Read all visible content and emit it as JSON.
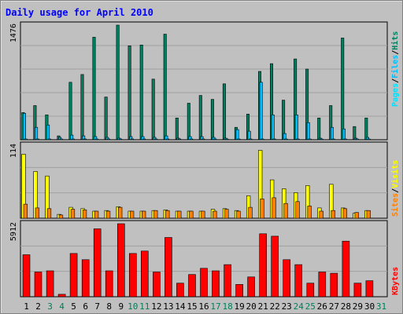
{
  "chart_data": [
    {
      "title": "Daily usage for April 2010",
      "type": "bar",
      "categories": [
        "1",
        "2",
        "3",
        "4",
        "5",
        "6",
        "7",
        "8",
        "9",
        "10",
        "11",
        "12",
        "13",
        "14",
        "15",
        "16",
        "17",
        "18",
        "19",
        "20",
        "21",
        "22",
        "23",
        "24",
        "25",
        "26",
        "27",
        "28",
        "29",
        "30",
        "31"
      ],
      "weekend_days": [
        "3",
        "4",
        "10",
        "11",
        "17",
        "18",
        "24",
        "25",
        "31"
      ],
      "panels": [
        {
          "id": "hits-files-pages",
          "ymax_label": "1476",
          "ymax": 1476,
          "axis_label_parts": [
            "Pages",
            "/",
            "Files",
            "/",
            "Hits"
          ],
          "series": [
            {
              "name": "Hits",
              "color": "#008060",
              "values": [
                350,
                440,
                320,
                50,
                740,
                840,
                1320,
                550,
                1476,
                1210,
                1220,
                780,
                1360,
                280,
                470,
                570,
                520,
                720,
                160,
                330,
                880,
                980,
                510,
                1040,
                910,
                280,
                440,
                1310,
                170,
                280,
                0
              ]
            },
            {
              "name": "Files",
              "color": "#00c0ff",
              "values": [
                340,
                160,
                190,
                30,
                60,
                50,
                40,
                30,
                20,
                40,
                40,
                30,
                50,
                20,
                40,
                40,
                30,
                20,
                130,
                110,
                740,
                320,
                80,
                320,
                220,
                20,
                160,
                140,
                20,
                30,
                0
              ]
            },
            {
              "name": "Pages",
              "color": "#00e0ff",
              "values": [
                5,
                5,
                5,
                3,
                5,
                5,
                5,
                3,
                3,
                5,
                5,
                5,
                5,
                3,
                5,
                5,
                5,
                5,
                5,
                5,
                5,
                5,
                5,
                5,
                5,
                5,
                5,
                5,
                3,
                3,
                0
              ]
            }
          ]
        },
        {
          "id": "visits-sites",
          "ymax_label": "114",
          "ymax": 114,
          "axis_label_parts": [
            "Sites",
            "/",
            "Visits"
          ],
          "series": [
            {
              "name": "Visits",
              "color": "#ffff00",
              "values": [
                100,
                73,
                66,
                6,
                17,
                15,
                11,
                12,
                18,
                11,
                11,
                12,
                13,
                11,
                11,
                11,
                14,
                15,
                12,
                35,
                106,
                60,
                46,
                40,
                51,
                16,
                53,
                16,
                8,
                12,
                0
              ]
            },
            {
              "name": "Sites",
              "color": "#ff8000",
              "values": [
                22,
                16,
                15,
                5,
                14,
                13,
                11,
                11,
                17,
                11,
                11,
                12,
                12,
                11,
                11,
                11,
                11,
                14,
                11,
                17,
                30,
                32,
                23,
                26,
                19,
                11,
                12,
                15,
                9,
                12,
                0
              ]
            }
          ]
        },
        {
          "id": "kbytes",
          "ymax_label": "5912",
          "ymax": 5912,
          "axis_label": "KBytes",
          "series": [
            {
              "name": "KBytes",
              "color": "#ff0000",
              "values": [
                3400,
                2000,
                2100,
                200,
                3500,
                3000,
                5500,
                2100,
                5912,
                3500,
                3700,
                2000,
                4800,
                1100,
                1800,
                2300,
                2100,
                2600,
                1000,
                1600,
                5100,
                4900,
                3000,
                2600,
                1100,
                2000,
                1900,
                4500,
                1100,
                1300,
                0
              ]
            }
          ]
        }
      ]
    }
  ]
}
